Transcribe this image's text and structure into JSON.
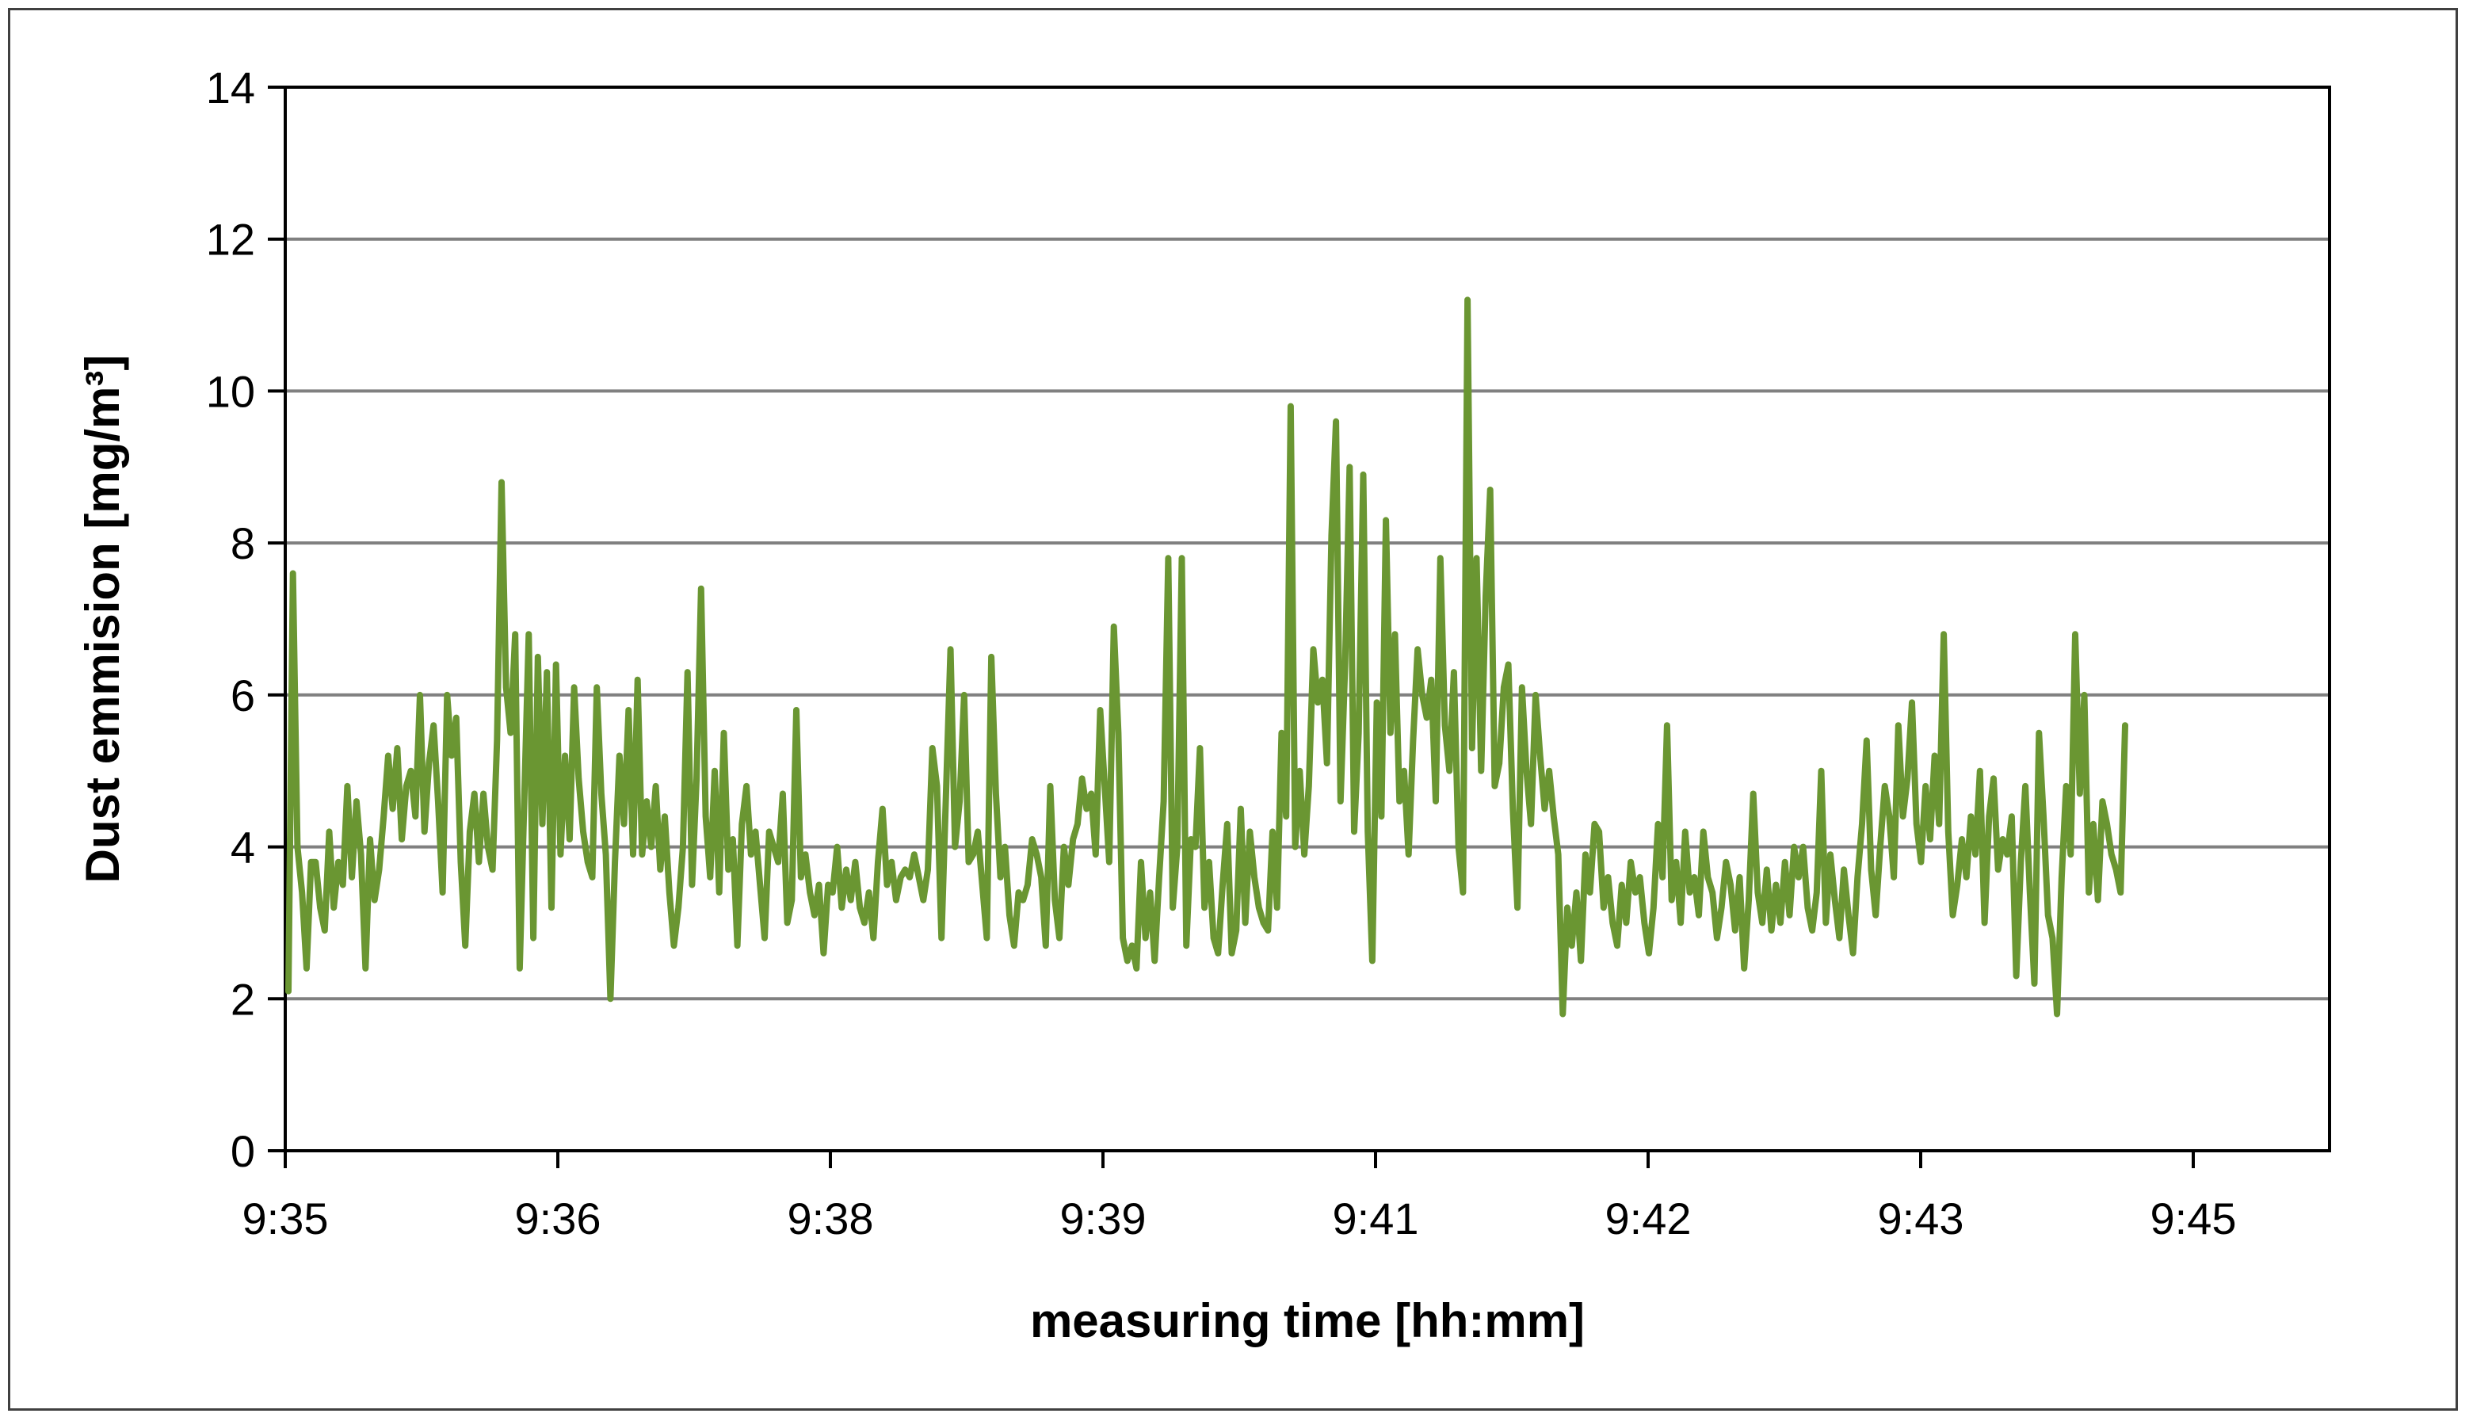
{
  "chart_data": {
    "type": "line",
    "title": "",
    "xlabel": "measuring time [hh:mm]",
    "ylabel": "Dust emmision [mg/m³]",
    "ylim": [
      0,
      14
    ],
    "yticks": [
      0,
      2,
      4,
      6,
      8,
      10,
      12,
      14
    ],
    "xticks": [
      "9:35",
      "9:36",
      "9:38",
      "9:39",
      "9:41",
      "9:42",
      "9:43",
      "9:45"
    ],
    "xlim": [
      "9:35",
      "9:45"
    ],
    "grid": "horizontal",
    "legend": "none",
    "series": [
      {
        "color": "#6a9632",
        "x_start": "9:35",
        "x_end": "9:44:45",
        "values": [
          2.1,
          7.6,
          4.0,
          3.4,
          2.4,
          3.8,
          3.8,
          3.2,
          2.9,
          4.2,
          3.2,
          3.8,
          3.5,
          4.8,
          3.6,
          4.6,
          3.9,
          2.4,
          4.1,
          3.3,
          3.7,
          4.4,
          5.2,
          4.5,
          5.3,
          4.1,
          4.8,
          5.0,
          4.4,
          6.0,
          4.2,
          5.1,
          5.6,
          4.6,
          3.4,
          6.0,
          5.2,
          5.7,
          3.8,
          2.7,
          4.2,
          4.7,
          3.8,
          4.7,
          4.0,
          3.7,
          5.4,
          8.8,
          6.1,
          5.5,
          6.8,
          2.4,
          4.6,
          6.8,
          2.8,
          6.5,
          4.3,
          6.3,
          3.2,
          6.4,
          3.9,
          5.2,
          4.1,
          6.1,
          4.9,
          4.2,
          3.8,
          3.6,
          6.1,
          4.7,
          3.9,
          2.0,
          3.8,
          5.2,
          4.3,
          5.8,
          3.9,
          6.2,
          3.9,
          4.6,
          4.0,
          4.8,
          3.7,
          4.4,
          3.4,
          2.7,
          3.2,
          4.0,
          6.3,
          3.5,
          4.9,
          7.4,
          4.4,
          3.6,
          5.0,
          3.4,
          5.5,
          3.7,
          4.1,
          2.7,
          4.3,
          4.8,
          3.9,
          4.2,
          3.5,
          2.8,
          4.2,
          4.0,
          3.8,
          4.7,
          3.0,
          3.3,
          5.8,
          3.6,
          3.9,
          3.4,
          3.1,
          3.5,
          2.6,
          3.5,
          3.4,
          4.0,
          3.2,
          3.7,
          3.3,
          3.8,
          3.2,
          3.0,
          3.4,
          2.8,
          3.8,
          4.5,
          3.5,
          3.8,
          3.3,
          3.6,
          3.7,
          3.6,
          3.9,
          3.6,
          3.3,
          3.7,
          5.3,
          4.8,
          2.8,
          4.7,
          6.6,
          4.0,
          4.6,
          6.0,
          3.8,
          3.9,
          4.2,
          3.5,
          2.8,
          6.5,
          4.7,
          3.6,
          4.0,
          3.1,
          2.7,
          3.4,
          3.3,
          3.5,
          4.1,
          3.9,
          3.6,
          2.7,
          4.8,
          3.3,
          2.8,
          4.0,
          3.5,
          4.1,
          4.3,
          4.9,
          4.5,
          4.7,
          3.9,
          5.8,
          4.8,
          3.8,
          6.9,
          5.5,
          2.8,
          2.5,
          2.7,
          2.4,
          3.8,
          2.8,
          3.4,
          2.5,
          3.6,
          4.6,
          7.8,
          3.2,
          4.0,
          7.8,
          2.7,
          4.1,
          4.0,
          5.3,
          3.2,
          3.8,
          2.8,
          2.6,
          3.5,
          4.3,
          2.6,
          2.9,
          4.5,
          3.0,
          4.2,
          3.6,
          3.2,
          3.0,
          2.9,
          4.2,
          3.2,
          5.5,
          4.4,
          9.8,
          4.0,
          5.0,
          3.9,
          4.8,
          6.6,
          5.9,
          6.2,
          5.1,
          8.1,
          9.6,
          4.6,
          6.4,
          9.0,
          4.2,
          5.5,
          8.9,
          4.2,
          2.5,
          5.9,
          4.4,
          8.3,
          5.5,
          6.8,
          4.6,
          5.0,
          3.9,
          5.4,
          6.6,
          6.0,
          5.7,
          6.2,
          4.6,
          7.8,
          5.6,
          5.0,
          6.3,
          4.0,
          3.4,
          11.2,
          5.3,
          7.8,
          5.0,
          7.3,
          8.7,
          4.8,
          5.1,
          6.1,
          6.4,
          4.5,
          3.2,
          6.1,
          5.0,
          4.3,
          6.0,
          5.2,
          4.5,
          5.0,
          4.4,
          3.9,
          1.8,
          3.2,
          2.7,
          3.4,
          2.5,
          3.9,
          3.4,
          4.3,
          4.2,
          3.2,
          3.6,
          3.0,
          2.7,
          3.5,
          3.0,
          3.8,
          3.4,
          3.6,
          3.0,
          2.6,
          3.2,
          4.3,
          3.6,
          5.6,
          3.3,
          3.8,
          3.0,
          4.2,
          3.4,
          3.6,
          3.1,
          4.2,
          3.6,
          3.4,
          2.8,
          3.2,
          3.8,
          3.5,
          2.9,
          3.6,
          2.4,
          3.3,
          4.7,
          3.4,
          3.0,
          3.7,
          2.9,
          3.5,
          3.0,
          3.8,
          3.1,
          4.0,
          3.6,
          4.0,
          3.2,
          2.9,
          3.4,
          5.0,
          3.0,
          3.9,
          3.3,
          2.8,
          3.7,
          3.1,
          2.6,
          3.6,
          4.3,
          5.4,
          3.7,
          3.1,
          4.0,
          4.8,
          4.4,
          3.6,
          5.6,
          4.4,
          4.9,
          5.9,
          4.3,
          3.8,
          4.8,
          4.1,
          5.2,
          4.3,
          6.8,
          4.2,
          3.1,
          3.5,
          4.1,
          3.6,
          4.4,
          3.9,
          5.0,
          3.0,
          4.4,
          4.9,
          3.7,
          4.1,
          3.9,
          4.4,
          2.3,
          3.8,
          4.8,
          3.4,
          2.2,
          5.5,
          4.4,
          3.1,
          2.8,
          1.8,
          3.6,
          4.8,
          3.9,
          6.8,
          4.7,
          6.0,
          3.4,
          4.3,
          3.3,
          4.6,
          4.3,
          3.9,
          3.7,
          3.4,
          5.6
        ]
      }
    ]
  }
}
